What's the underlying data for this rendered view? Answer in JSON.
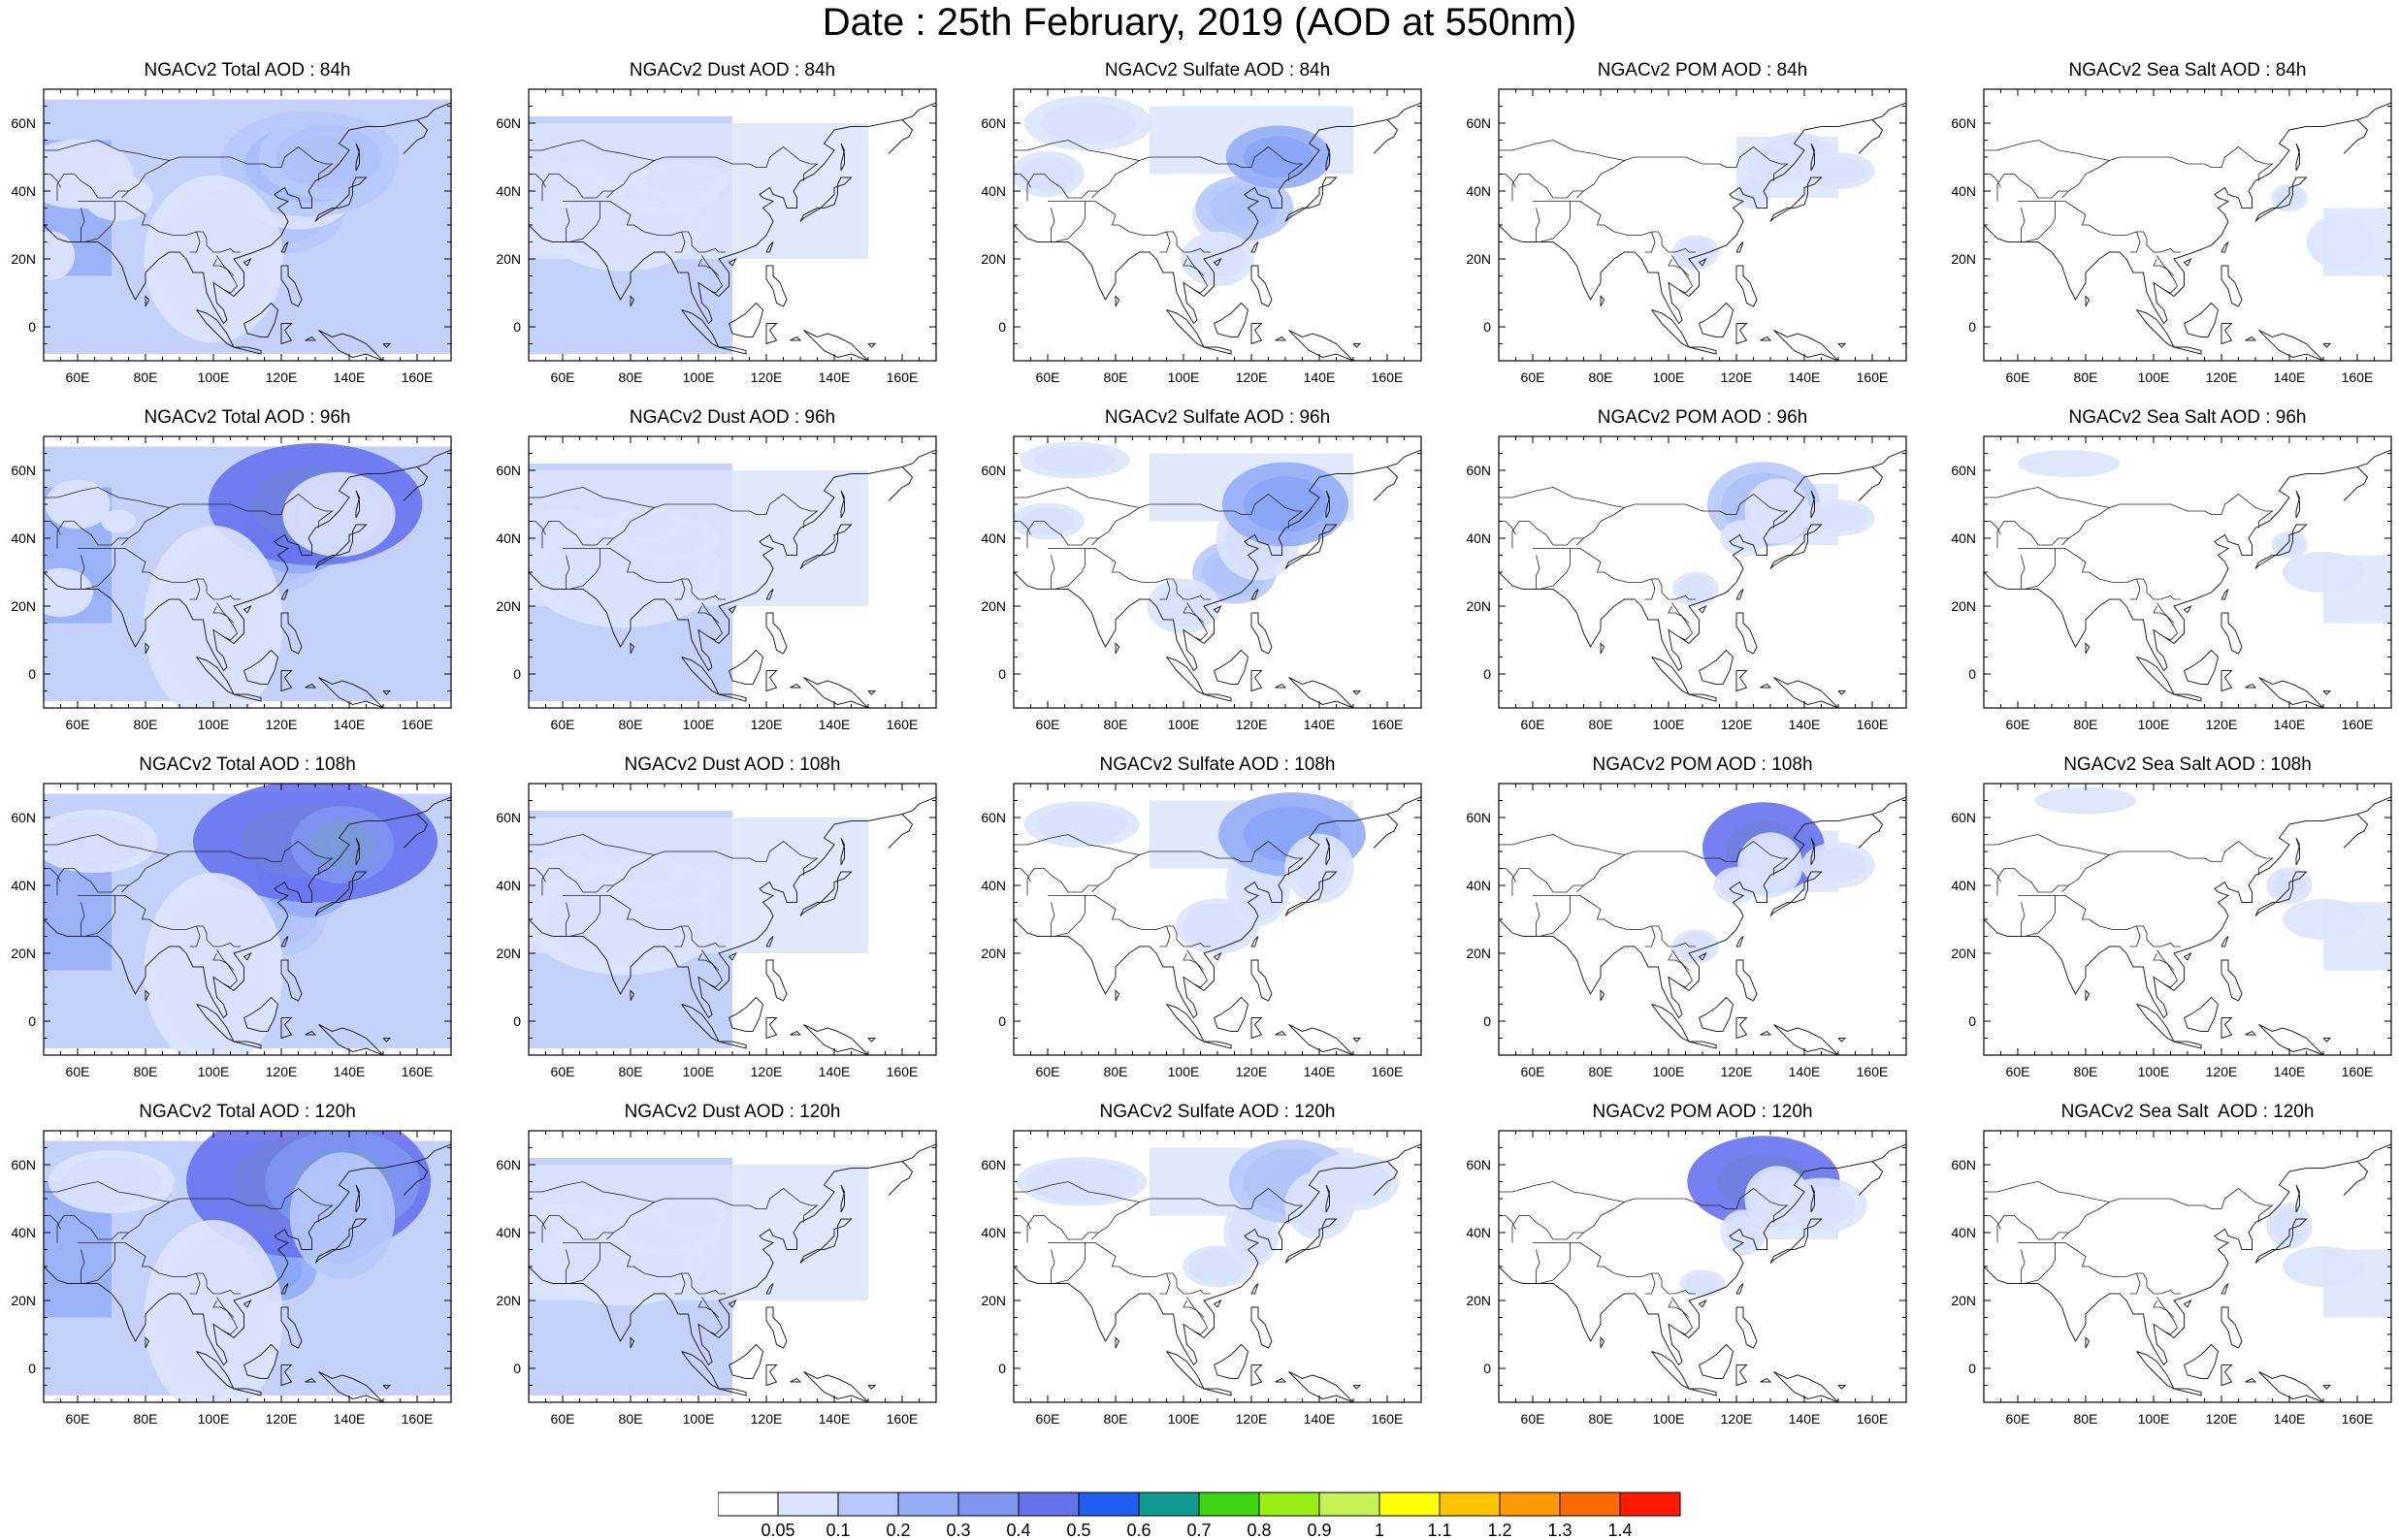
{
  "title": "Date : 25th February, 2019 (AOD at 550nm)",
  "lat_labels": [
    "60N",
    "40N",
    "20N",
    "0"
  ],
  "lat_values": [
    60,
    40,
    20,
    0
  ],
  "lon_labels": [
    "60E",
    "80E",
    "100E",
    "120E",
    "140E",
    "160E"
  ],
  "lon_values": [
    60,
    80,
    100,
    120,
    140,
    160
  ],
  "map_extent": {
    "lon": [
      50,
      170
    ],
    "lat": [
      -10,
      70
    ]
  },
  "colorbar": {
    "labels": [
      "0.05",
      "0.1",
      "0.2",
      "0.3",
      "0.4",
      "0.5",
      "0.6",
      "0.7",
      "0.8",
      "0.9",
      "1",
      "1.1",
      "1.2",
      "1.3",
      "1.4"
    ],
    "colors": [
      "#ffffff",
      "#dbe4fc",
      "#b8c9fa",
      "#95adf7",
      "#7e95f2",
      "#6772ee",
      "#1f5ef0",
      "#119a8f",
      "#3fd411",
      "#97ed14",
      "#c7f056",
      "#ffff00",
      "#ffc300",
      "#ff9900",
      "#ff6a00",
      "#ff1a00"
    ]
  },
  "panels": [
    {
      "title": "NGACv2 Total AOD : 84h",
      "species": "total",
      "hour": 84
    },
    {
      "title": "NGACv2 Dust AOD : 84h",
      "species": "dust",
      "hour": 84
    },
    {
      "title": "NGACv2 Sulfate AOD : 84h",
      "species": "sulfate",
      "hour": 84
    },
    {
      "title": "NGACv2 POM AOD : 84h",
      "species": "pom",
      "hour": 84
    },
    {
      "title": "NGACv2 Sea Salt AOD : 84h",
      "species": "seasalt",
      "hour": 84
    },
    {
      "title": "NGACv2 Total AOD : 96h",
      "species": "total",
      "hour": 96
    },
    {
      "title": "NGACv2 Dust AOD : 96h",
      "species": "dust",
      "hour": 96
    },
    {
      "title": "NGACv2 Sulfate AOD : 96h",
      "species": "sulfate",
      "hour": 96
    },
    {
      "title": "NGACv2 POM AOD : 96h",
      "species": "pom",
      "hour": 96
    },
    {
      "title": "NGACv2 Sea Salt AOD : 96h",
      "species": "seasalt",
      "hour": 96
    },
    {
      "title": "NGACv2 Total AOD : 108h",
      "species": "total",
      "hour": 108
    },
    {
      "title": "NGACv2 Dust AOD : 108h",
      "species": "dust",
      "hour": 108
    },
    {
      "title": "NGACv2 Sulfate AOD : 108h",
      "species": "sulfate",
      "hour": 108
    },
    {
      "title": "NGACv2 POM AOD : 108h",
      "species": "pom",
      "hour": 108
    },
    {
      "title": "NGACv2 Sea Salt AOD : 108h",
      "species": "seasalt",
      "hour": 108
    },
    {
      "title": "NGACv2 Total AOD : 120h",
      "species": "total",
      "hour": 120
    },
    {
      "title": "NGACv2 Dust AOD : 120h",
      "species": "dust",
      "hour": 120
    },
    {
      "title": "NGACv2 Sulfate AOD : 120h",
      "species": "sulfate",
      "hour": 120
    },
    {
      "title": "NGACv2 POM AOD : 120h",
      "species": "pom",
      "hour": 120
    },
    {
      "title": "NGACv2 Sea Salt  AOD : 120h",
      "species": "seasalt",
      "hour": 120
    }
  ]
}
